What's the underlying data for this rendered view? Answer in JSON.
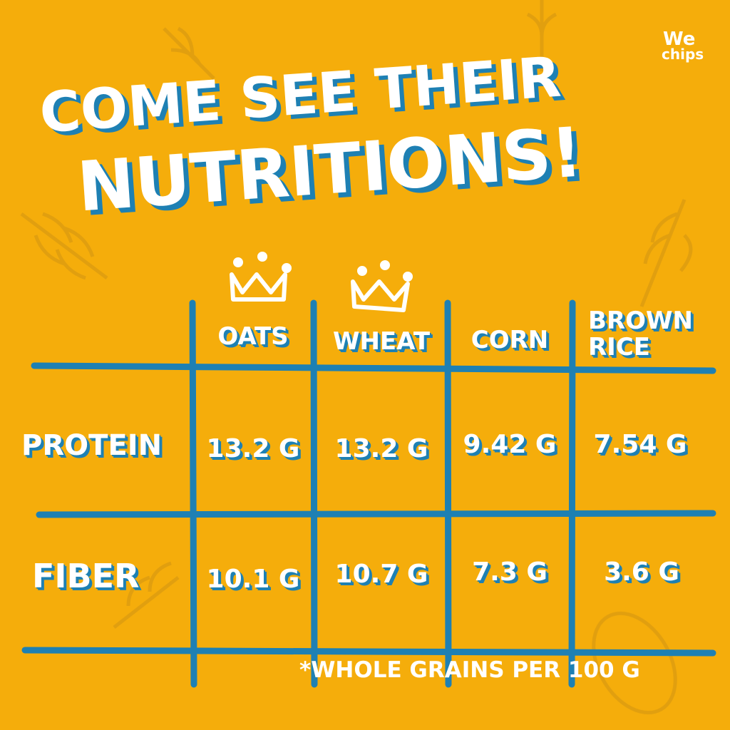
{
  "brand": {
    "line1": "We",
    "line2": "chips"
  },
  "title": {
    "line1": "COME SEE THEIR",
    "line2": "NUTRITIONS!"
  },
  "table": {
    "columns": [
      "OATS",
      "WHEAT",
      "CORN",
      "BROWN RICE"
    ],
    "rows": [
      {
        "label": "PROTEIN",
        "cells": [
          "13.2 G",
          "13.2 G",
          "9.42 G",
          "7.54 G"
        ]
      },
      {
        "label": "FIBER",
        "cells": [
          "10.1 G",
          "10.7 G",
          "7.3 G",
          "3.6 G"
        ]
      }
    ]
  },
  "footnote": "*WHOLE GRAINS PER 100 G"
}
